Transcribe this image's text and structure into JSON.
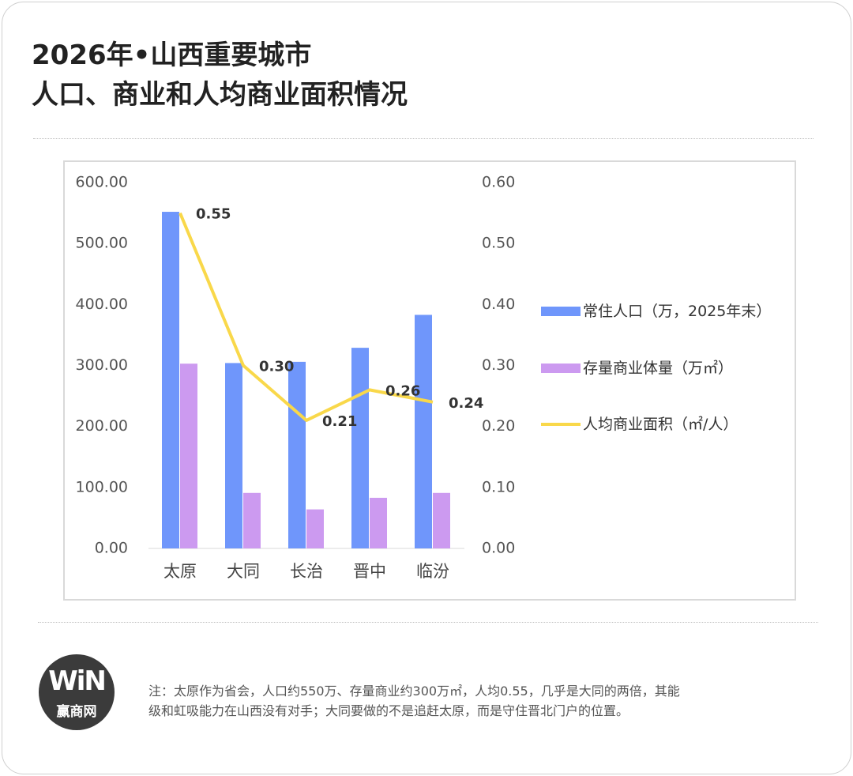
{
  "header": {
    "title_lines": [
      "2026年•山西重要城市",
      "人口、商业和人均商业面积情况"
    ]
  },
  "chart_data": {
    "type": "bar-line",
    "categories": [
      "太原",
      "大同",
      "长治",
      "晋中",
      "临汾"
    ],
    "series": [
      {
        "name": "常住人口（万，2025年末）",
        "type": "bar",
        "color": "#6f96fb",
        "values": [
          552,
          304,
          306,
          329,
          383
        ]
      },
      {
        "name": "存量商业体量（万㎡）",
        "type": "bar",
        "color": "#cc9af0",
        "values": [
          303,
          91,
          64,
          83,
          91
        ]
      },
      {
        "name": "人均商业面积（㎡/人）",
        "type": "line",
        "axis": "y2",
        "color": "#f9d84a",
        "values": [
          0.55,
          0.3,
          0.21,
          0.26,
          0.24
        ],
        "value_labels": [
          "0.55",
          "0.30",
          "0.21",
          "0.26",
          "0.24"
        ]
      }
    ],
    "ylim": [
      0,
      600
    ],
    "yticks": [
      {
        "value": 0,
        "label": "0.00"
      },
      {
        "value": 100,
        "label": "100.00"
      },
      {
        "value": 200,
        "label": "200.00"
      },
      {
        "value": 300,
        "label": "300.00"
      },
      {
        "value": 400,
        "label": "400.00"
      },
      {
        "value": 500,
        "label": "500.00"
      },
      {
        "value": 600,
        "label": "600.00"
      }
    ],
    "y2lim": [
      0,
      0.6
    ],
    "y2ticks": [
      {
        "value": 0,
        "label": "0.00"
      },
      {
        "value": 0.1,
        "label": "0.10"
      },
      {
        "value": 0.2,
        "label": "0.20"
      },
      {
        "value": 0.3,
        "label": "0.30"
      },
      {
        "value": 0.4,
        "label": "0.40"
      },
      {
        "value": 0.5,
        "label": "0.50"
      },
      {
        "value": 0.6,
        "label": "0.60"
      }
    ],
    "grid": false,
    "legend": "right"
  },
  "logo": {
    "mark": "WiN",
    "name": "赢商网"
  },
  "note_lines": [
    "注：太原作为省会，人口约550万、存量商业约300万㎡，人均0.55，几乎是大同的两倍，其能",
    "级和虹吸能力在山西没有对手；大同要做的不是追赶太原，而是守住晋北门户的位置。"
  ]
}
